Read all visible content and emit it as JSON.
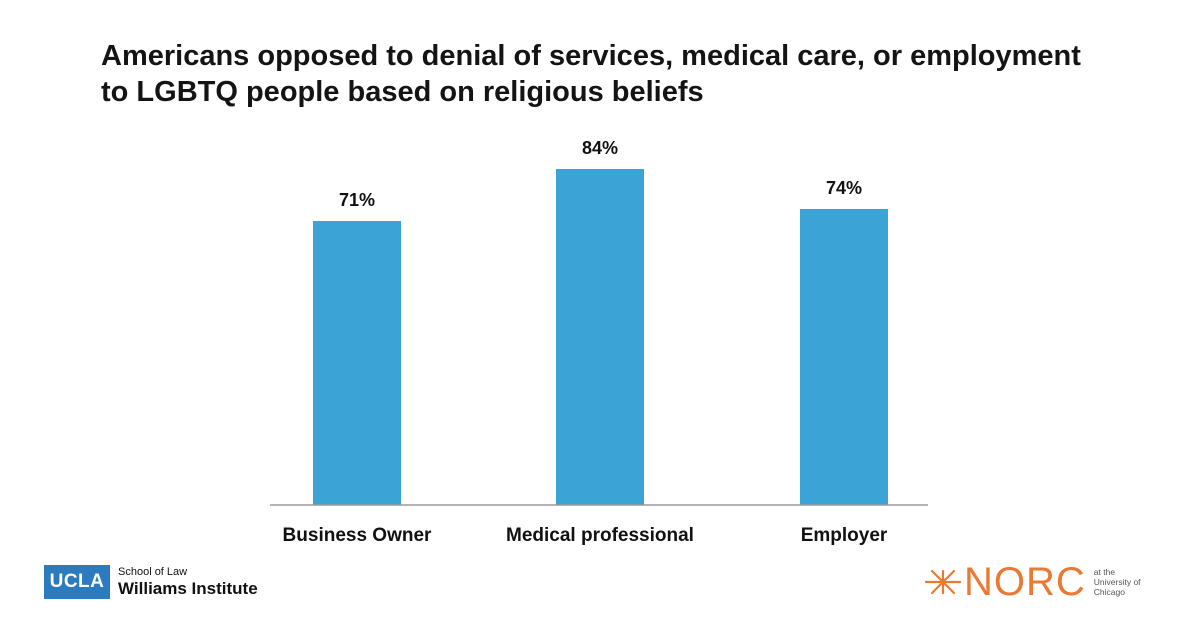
{
  "chart_data": {
    "type": "bar",
    "title_lines": [
      "Americans opposed to denial of services, medical care, or employment",
      "to LGBTQ people based on religious beliefs"
    ],
    "categories": [
      "Business Owner",
      "Medical professional",
      "Employer"
    ],
    "values": [
      71,
      84,
      74
    ],
    "data_labels": [
      "71%",
      "84%",
      "74%"
    ],
    "bar_color": "#3ba3d6",
    "ylim": [
      0,
      100
    ],
    "grid": false,
    "legend": "none"
  },
  "logos": {
    "ucla": {
      "box_text": "UCLA",
      "line1": "School of Law",
      "line2": "Williams Institute",
      "color": "#2c7bbf"
    },
    "norc": {
      "mark_icon": "starburst-icon",
      "word": "NORC",
      "sub_lines": [
        "at the",
        "University of",
        "Chicago"
      ],
      "color": "#ea7a33"
    }
  }
}
